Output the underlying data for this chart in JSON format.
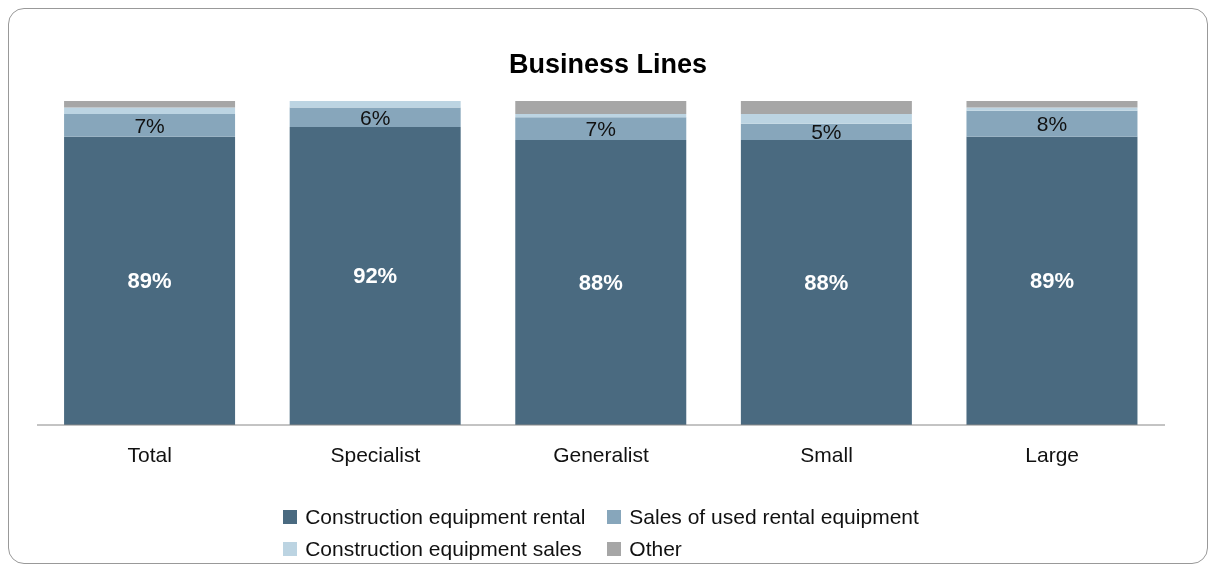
{
  "chart_data": {
    "type": "bar",
    "title": "Business Lines",
    "stacked": true,
    "legend": "bottom",
    "ylim": [
      0,
      100
    ],
    "tick_labels": "x",
    "categories": [
      "Total",
      "Specialist",
      "Generalist",
      "Small",
      "Large"
    ],
    "series": [
      {
        "name": "Construction equipment rental",
        "color": "#4a6a80",
        "values": [
          89,
          92,
          88,
          88,
          89
        ],
        "value_labels": [
          "89%",
          "92%",
          "88%",
          "88%",
          "89%"
        ]
      },
      {
        "name": "Sales of used rental equipment",
        "color": "#87a6bb",
        "values": [
          7,
          6,
          7,
          5,
          8
        ],
        "value_labels": [
          "7%",
          "6%",
          "7%",
          "5%",
          "8%"
        ]
      },
      {
        "name": "Construction equipment sales",
        "color": "#bcd4e2",
        "values": [
          2,
          2,
          1,
          3,
          1
        ]
      },
      {
        "name": "Other",
        "color": "#a6a6a6",
        "values": [
          2,
          0,
          4,
          4,
          2
        ]
      }
    ]
  }
}
